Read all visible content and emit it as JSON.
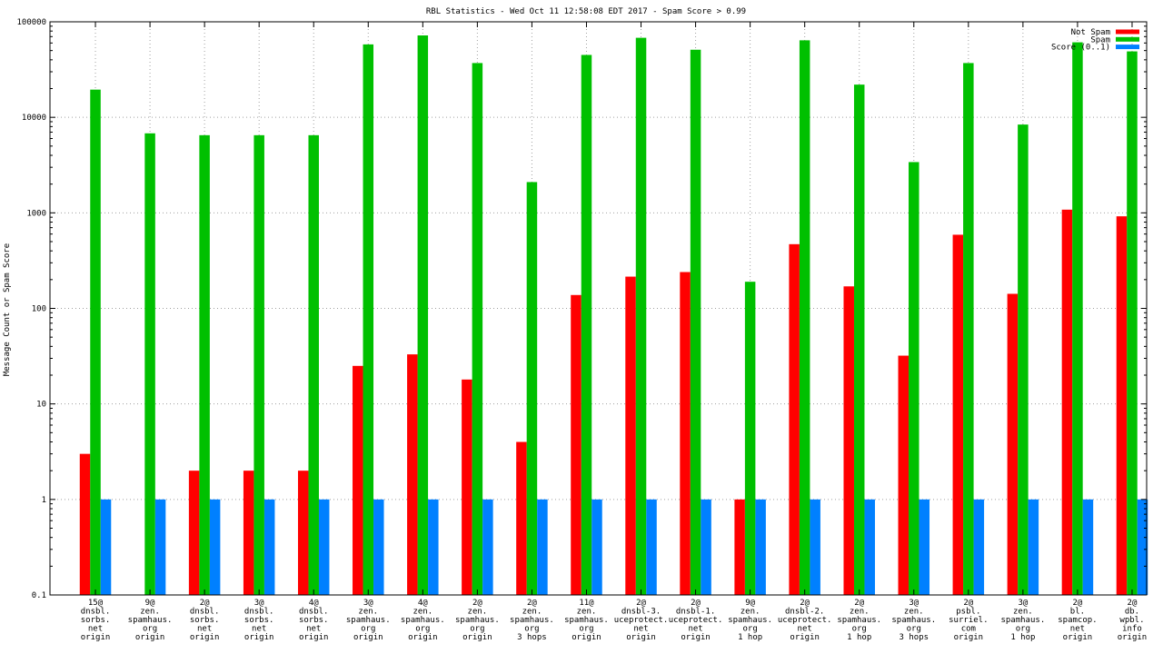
{
  "chart_data": {
    "type": "bar",
    "title": "RBL Statistics - Wed Oct 11 12:58:08 EDT 2017 - Spam Score > 0.99",
    "ylabel": "Message Count or Spam Score",
    "xlabel": "",
    "yscale": "log",
    "ylim": [
      0.1,
      100000
    ],
    "y_ticks": [
      "0.1",
      "1",
      "10",
      "100",
      "1000",
      "10000",
      "100000"
    ],
    "grid": true,
    "legend_position": "top-right",
    "categories": [
      [
        "15@",
        "dnsbl.",
        "sorbs.",
        "net",
        "origin"
      ],
      [
        "9@",
        "zen.",
        "spamhaus.",
        "org",
        "origin"
      ],
      [
        "2@",
        "dnsbl.",
        "sorbs.",
        "net",
        "origin"
      ],
      [
        "3@",
        "dnsbl.",
        "sorbs.",
        "net",
        "origin"
      ],
      [
        "4@",
        "dnsbl.",
        "sorbs.",
        "net",
        "origin"
      ],
      [
        "3@",
        "zen.",
        "spamhaus.",
        "org",
        "origin"
      ],
      [
        "4@",
        "zen.",
        "spamhaus.",
        "org",
        "origin"
      ],
      [
        "2@",
        "zen.",
        "spamhaus.",
        "org",
        "origin"
      ],
      [
        "2@",
        "zen.",
        "spamhaus.",
        "org",
        "3 hops"
      ],
      [
        "11@",
        "zen.",
        "spamhaus.",
        "org",
        "origin"
      ],
      [
        "2@",
        "dnsbl-3.",
        "uceprotect.",
        "net",
        "origin"
      ],
      [
        "2@",
        "dnsbl-1.",
        "uceprotect.",
        "net",
        "origin"
      ],
      [
        "9@",
        "zen.",
        "spamhaus.",
        "org",
        "1 hop"
      ],
      [
        "2@",
        "dnsbl-2.",
        "uceprotect.",
        "net",
        "origin"
      ],
      [
        "2@",
        "zen.",
        "spamhaus.",
        "org",
        "1 hop"
      ],
      [
        "3@",
        "zen.",
        "spamhaus.",
        "org",
        "3 hops"
      ],
      [
        "2@",
        "psbl.",
        "surriel.",
        "com",
        "origin"
      ],
      [
        "3@",
        "zen.",
        "spamhaus.",
        "org",
        "1 hop"
      ],
      [
        "2@",
        "bl.",
        "spamcop.",
        "net",
        "origin"
      ],
      [
        "2@",
        "db.",
        "wpbl.",
        "info",
        "origin"
      ]
    ],
    "series": [
      {
        "name": "Not Spam",
        "color": "#ff0000",
        "values": [
          3,
          null,
          2,
          2,
          2,
          25,
          33,
          18,
          4,
          138,
          215,
          240,
          1,
          470,
          170,
          32,
          590,
          142,
          1080,
          920
        ]
      },
      {
        "name": "Spam",
        "color": "#00c000",
        "values": [
          19500,
          6800,
          6500,
          6500,
          6500,
          58000,
          72000,
          37000,
          2100,
          45000,
          68000,
          51000,
          190,
          64000,
          22000,
          3400,
          37000,
          8400,
          61000,
          49000
        ]
      },
      {
        "name": "Score (0..1)",
        "color": "#0080ff",
        "values": [
          1,
          1,
          1,
          1,
          1,
          1,
          1,
          1,
          1,
          1,
          1,
          1,
          1,
          1,
          1,
          1,
          1,
          1,
          1,
          1
        ]
      }
    ]
  }
}
